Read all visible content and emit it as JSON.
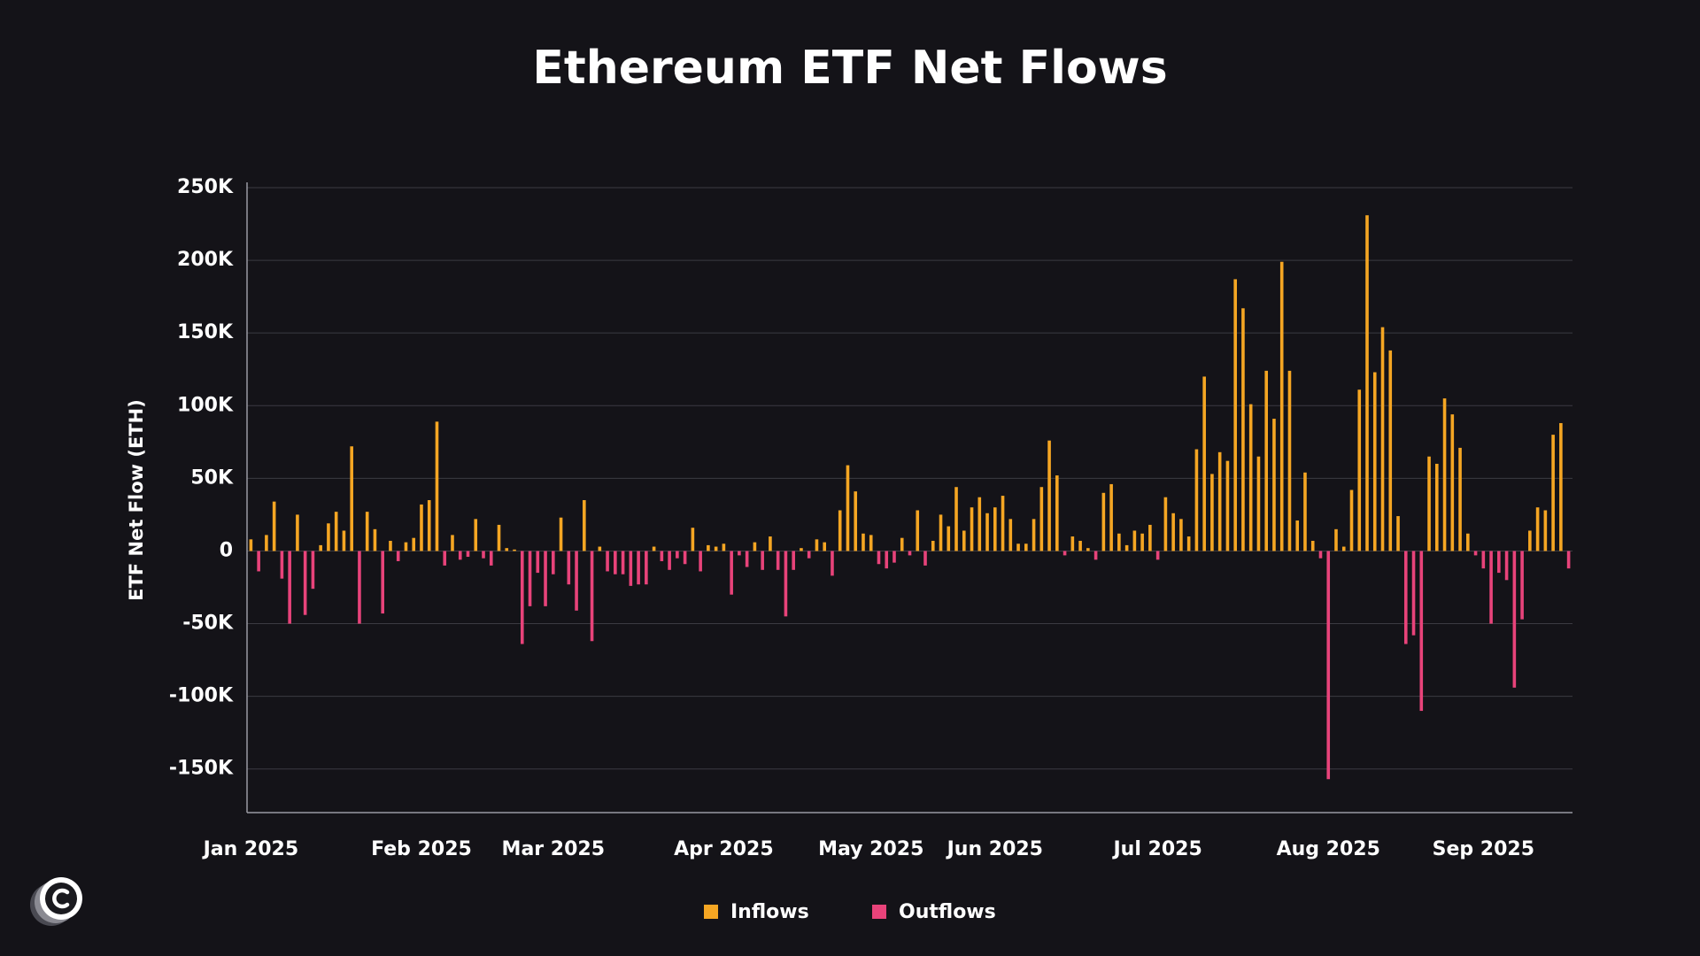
{
  "chart_data": {
    "type": "bar",
    "title": "Ethereum ETF Net Flows",
    "y_label": "ETF Net Flow (ETH)",
    "categories": [
      "Jan 2025",
      null,
      null,
      null,
      null,
      null,
      null,
      null,
      null,
      null,
      null,
      null,
      null,
      null,
      null,
      null,
      null,
      null,
      null,
      null,
      null,
      null,
      "Feb 2025",
      null,
      null,
      null,
      null,
      null,
      null,
      null,
      null,
      null,
      null,
      null,
      null,
      null,
      null,
      null,
      null,
      "Mar 2025",
      null,
      null,
      null,
      null,
      null,
      null,
      null,
      null,
      null,
      null,
      null,
      null,
      null,
      null,
      null,
      null,
      null,
      null,
      null,
      null,
      null,
      "Apr 2025",
      null,
      null,
      null,
      null,
      null,
      null,
      null,
      null,
      null,
      null,
      null,
      null,
      null,
      null,
      null,
      null,
      null,
      null,
      "May 2025",
      null,
      null,
      null,
      null,
      null,
      null,
      null,
      null,
      null,
      null,
      null,
      null,
      null,
      null,
      null,
      "Jun 2025",
      null,
      null,
      null,
      null,
      null,
      null,
      null,
      null,
      null,
      null,
      null,
      null,
      null,
      null,
      null,
      null,
      null,
      null,
      null,
      null,
      "Jul 2025",
      null,
      null,
      null,
      null,
      null,
      null,
      null,
      null,
      null,
      null,
      null,
      null,
      null,
      null,
      null,
      null,
      null,
      null,
      null,
      null,
      null,
      "Aug 2025",
      null,
      null,
      null,
      null,
      null,
      null,
      null,
      null,
      null,
      null,
      null,
      null,
      null,
      null,
      null,
      null,
      null,
      null,
      null,
      "Sep 2025",
      null,
      null,
      null,
      null,
      null,
      null,
      null,
      null,
      null,
      null,
      null
    ],
    "series": [
      {
        "name": "Inflows",
        "color": "#f5a623",
        "values": [
          8000,
          null,
          11000,
          34000,
          null,
          null,
          25000,
          null,
          null,
          4000,
          19000,
          27000,
          14000,
          72000,
          null,
          27000,
          15000,
          null,
          7000,
          null,
          6000,
          9000,
          32000,
          35000,
          89000,
          null,
          11000,
          null,
          null,
          22000,
          null,
          null,
          18000,
          2000,
          1000,
          null,
          null,
          null,
          null,
          null,
          23000,
          null,
          null,
          35000,
          null,
          3000,
          null,
          null,
          null,
          null,
          null,
          null,
          3000,
          null,
          null,
          null,
          null,
          16000,
          null,
          4000,
          3000,
          5000,
          null,
          null,
          null,
          6000,
          null,
          10000,
          null,
          null,
          null,
          2000,
          null,
          8000,
          6000,
          null,
          28000,
          59000,
          41000,
          12000,
          11000,
          null,
          null,
          null,
          9000,
          null,
          28000,
          null,
          7000,
          25000,
          17000,
          44000,
          14000,
          30000,
          37000,
          26000,
          30000,
          38000,
          22000,
          5000,
          5000,
          22000,
          44000,
          76000,
          52000,
          null,
          10000,
          7000,
          2000,
          null,
          40000,
          46000,
          12000,
          4000,
          14000,
          12000,
          18000,
          null,
          37000,
          26000,
          22000,
          10000,
          70000,
          120000,
          53000,
          68000,
          62000,
          187000,
          167000,
          101000,
          65000,
          124000,
          91000,
          199000,
          124000,
          21000,
          54000,
          7000,
          null,
          null,
          15000,
          3000,
          42000,
          111000,
          231000,
          123000,
          154000,
          138000,
          24000,
          null,
          null,
          null,
          65000,
          60000,
          105000,
          94000,
          71000,
          12000,
          null,
          null,
          null,
          null,
          null,
          null,
          null,
          14000,
          30000,
          28000,
          80000,
          88000,
          null
        ]
      },
      {
        "name": "Outflows",
        "color": "#e8437a",
        "values": [
          null,
          -14000,
          null,
          null,
          -19000,
          -50000,
          null,
          -44000,
          -26000,
          null,
          null,
          null,
          null,
          null,
          -50000,
          null,
          null,
          -43000,
          null,
          -7000,
          null,
          null,
          null,
          null,
          null,
          -10000,
          null,
          -6000,
          -4000,
          null,
          -5000,
          -10000,
          null,
          null,
          null,
          -64000,
          -38000,
          -15000,
          -38000,
          -16000,
          null,
          -23000,
          -41000,
          null,
          -62000,
          null,
          -14000,
          -16000,
          -16000,
          -24000,
          -23000,
          -23000,
          null,
          -7000,
          -13000,
          -5000,
          -9000,
          null,
          -14000,
          null,
          null,
          null,
          -30000,
          -3000,
          -11000,
          null,
          -13000,
          null,
          -13000,
          -45000,
          -13000,
          null,
          -5000,
          null,
          null,
          -17000,
          null,
          null,
          null,
          null,
          null,
          -9000,
          -12000,
          -8000,
          null,
          -3000,
          null,
          -10000,
          null,
          null,
          null,
          null,
          null,
          null,
          null,
          null,
          null,
          null,
          null,
          null,
          null,
          null,
          null,
          null,
          null,
          -3000,
          null,
          null,
          null,
          -6000,
          null,
          null,
          null,
          null,
          null,
          null,
          null,
          -6000,
          null,
          null,
          null,
          null,
          null,
          null,
          null,
          null,
          null,
          null,
          null,
          null,
          null,
          null,
          null,
          null,
          null,
          null,
          null,
          null,
          -5000,
          -157000,
          null,
          null,
          null,
          null,
          null,
          null,
          null,
          null,
          null,
          -64000,
          -58000,
          -110000,
          null,
          null,
          null,
          null,
          null,
          null,
          -3000,
          -12000,
          -50000,
          -15000,
          -20000,
          -94000,
          -47000,
          null,
          null,
          null,
          null,
          null,
          -12000
        ]
      }
    ],
    "ylim": [
      -180000,
      250000
    ],
    "yticks": [
      {
        "value": -150000,
        "label": "-150K"
      },
      {
        "value": -100000,
        "label": "-100K"
      },
      {
        "value": -50000,
        "label": "-50K"
      },
      0,
      {
        "value": 50000,
        "label": "50K"
      },
      {
        "value": 100000,
        "label": "100K"
      },
      {
        "value": 150000,
        "label": "150K"
      },
      {
        "value": 200000,
        "label": "200K"
      },
      {
        "value": 250000,
        "label": "250K"
      }
    ],
    "grid": true
  }
}
